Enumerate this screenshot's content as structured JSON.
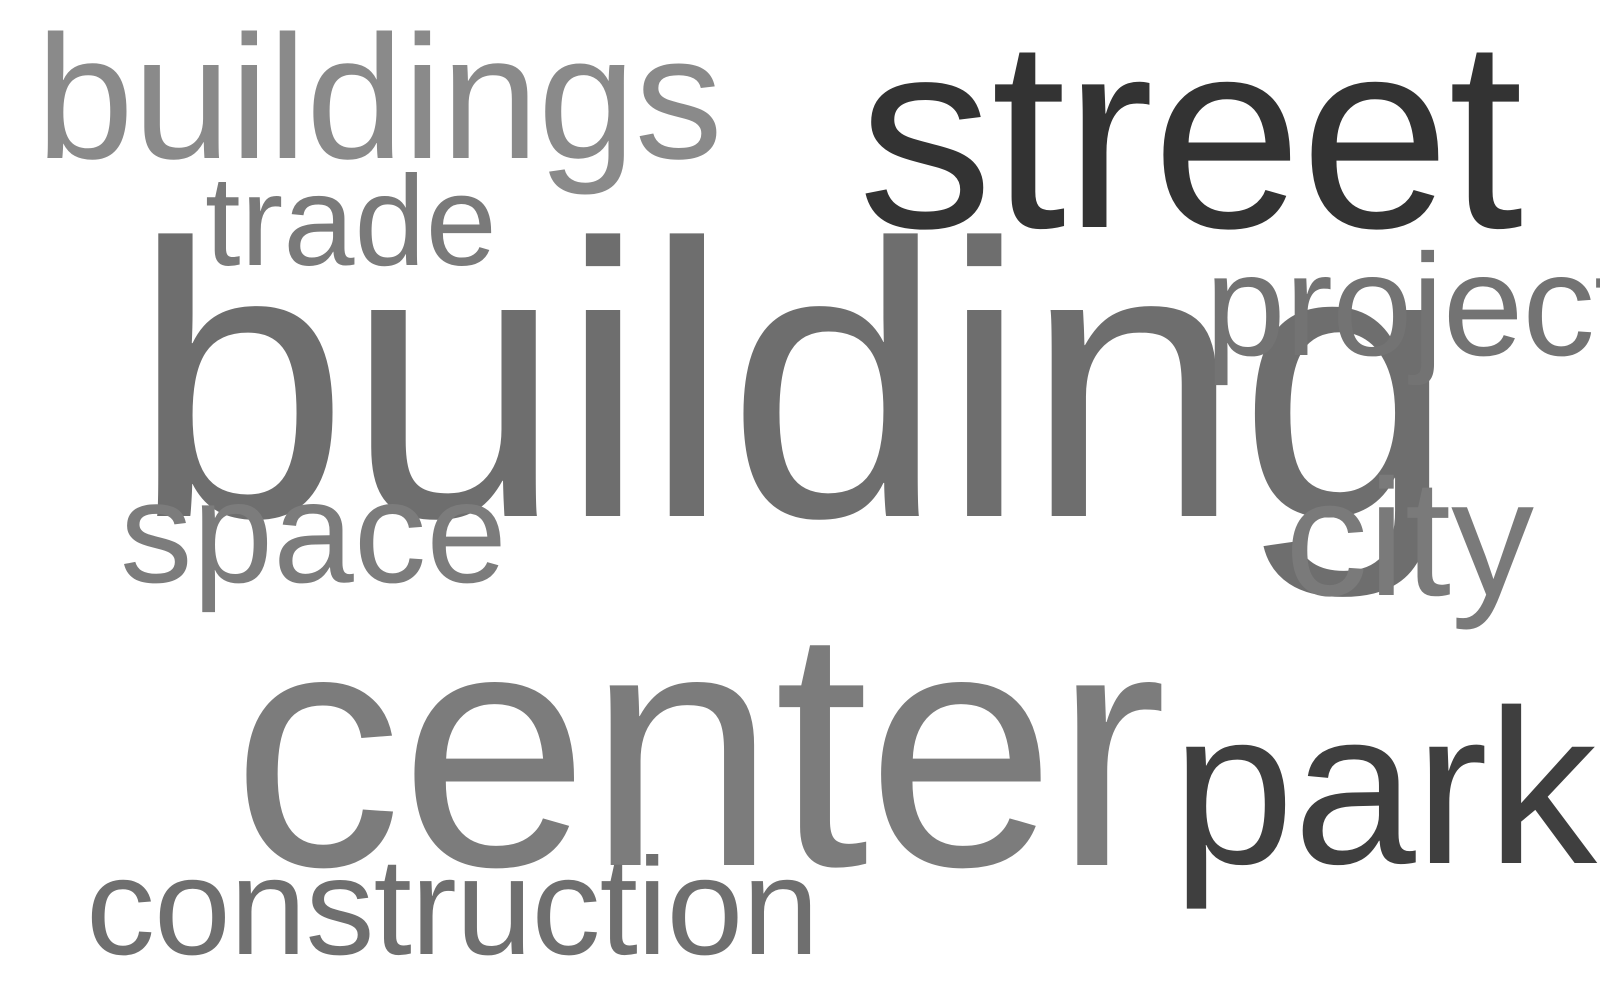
{
  "word_cloud": {
    "words": [
      {
        "id": "buildings",
        "text": "buildings",
        "color": "#8a8a8a"
      },
      {
        "id": "street",
        "text": "street",
        "color": "#333333"
      },
      {
        "id": "trade",
        "text": "trade",
        "color": "#7a7a7a"
      },
      {
        "id": "building",
        "text": "building",
        "color": "#6e6e6e"
      },
      {
        "id": "project",
        "text": "project",
        "color": "#737373"
      },
      {
        "id": "space",
        "text": "space",
        "color": "#7c7c7c"
      },
      {
        "id": "city",
        "text": "city",
        "color": "#7a7a7a"
      },
      {
        "id": "center",
        "text": "center",
        "color": "#7c7c7c"
      },
      {
        "id": "park",
        "text": "park",
        "color": "#3f3f3f"
      },
      {
        "id": "construction",
        "text": "construction",
        "color": "#6f6f6f"
      }
    ]
  }
}
